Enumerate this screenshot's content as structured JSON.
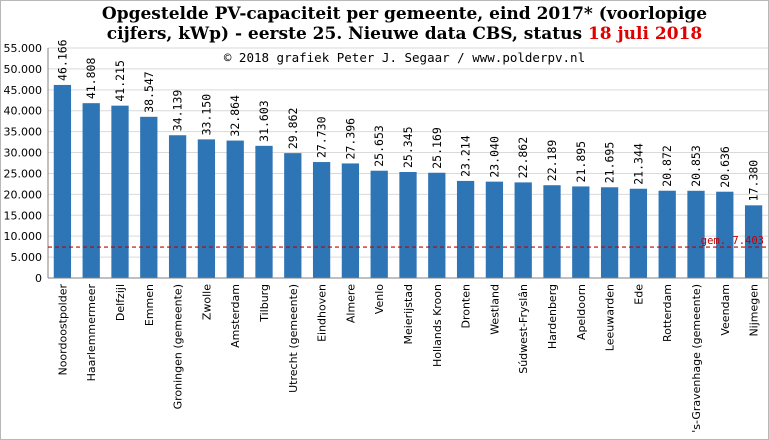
{
  "title": {
    "line1": "Opgestelde PV-capaciteit per gemeente, eind 2017* (voorlopige",
    "line2": "cijfers, kWp) - eerste 25. Nieuwe data CBS, status ",
    "status_date": "18 juli 2018"
  },
  "credit": "© 2018 grafiek Peter J. Segaar / www.polderpv.nl",
  "colors": {
    "bar": "#2e75b6",
    "average_line": "#c00000",
    "status_date": "#e00000",
    "grid": "#d9d9d9"
  },
  "chart_data": {
    "type": "bar",
    "title": "Opgestelde PV-capaciteit per gemeente, eind 2017* (voorlopige cijfers, kWp) - eerste 25. Nieuwe data CBS, status 18 juli 2018",
    "xlabel": "",
    "ylabel": "",
    "ylim": [
      0,
      55000
    ],
    "yticks": [
      0,
      5000,
      10000,
      15000,
      20000,
      25000,
      30000,
      35000,
      40000,
      45000,
      50000,
      55000
    ],
    "ytick_labels": [
      "0",
      "5.000",
      "10.000",
      "15.000",
      "20.000",
      "25.000",
      "30.000",
      "35.000",
      "40.000",
      "45.000",
      "50.000",
      "55.000"
    ],
    "grid": true,
    "categories": [
      "Noordoostpolder",
      "Haarlemmermeer",
      "Delfzijl",
      "Emmen",
      "Groningen (gemeente)",
      "Zwolle",
      "Amsterdam",
      "Tilburg",
      "Utrecht (gemeente)",
      "Eindhoven",
      "Almere",
      "Venlo",
      "Meierijstad",
      "Hollands Kroon",
      "Dronten",
      "Westland",
      "Súdwest-Fryslân",
      "Hardenberg",
      "Apeldoorn",
      "Leeuwarden",
      "Ede",
      "Rotterdam",
      "'s-Gravenhage (gemeente)",
      "Veendam",
      "Nijmegen"
    ],
    "values": [
      46166,
      41808,
      41215,
      38547,
      34139,
      33150,
      32864,
      31603,
      29862,
      27730,
      27396,
      25653,
      25345,
      25169,
      23214,
      23040,
      22862,
      22189,
      21895,
      21695,
      21344,
      20872,
      20853,
      20636,
      17380
    ],
    "value_labels": [
      "46.166",
      "41.808",
      "41.215",
      "38.547",
      "34.139",
      "33.150",
      "32.864",
      "31.603",
      "29.862",
      "27.730",
      "27.396",
      "25.653",
      "25.345",
      "25.169",
      "23.214",
      "23.040",
      "22.862",
      "22.189",
      "21.895",
      "21.695",
      "21.344",
      "20.872",
      "20.853",
      "20.636",
      "17.380"
    ],
    "average": {
      "value": 7403,
      "label": "gem. 7.403"
    }
  }
}
